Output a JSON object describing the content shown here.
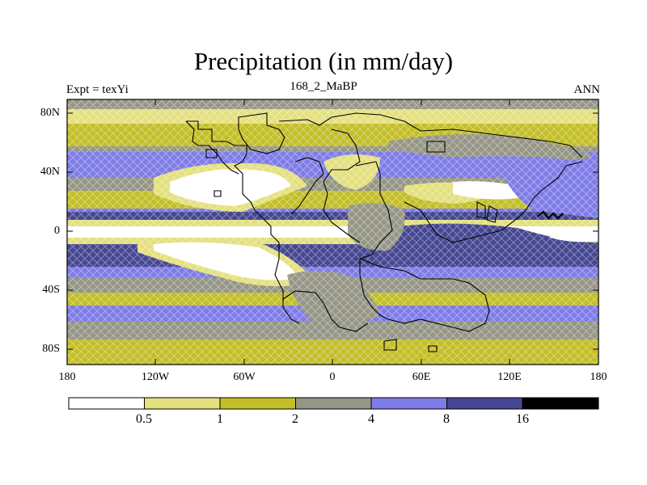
{
  "title": "Precipitation (in mm/day)",
  "left_label": "Expt = texYi",
  "center_label": "168_2_MaBP",
  "right_label": "ANN",
  "y_ticks": [
    "80N",
    "40N",
    "0",
    "40S",
    "80S"
  ],
  "x_ticks": [
    "180",
    "120W",
    "60W",
    "0",
    "60E",
    "120E",
    "180"
  ],
  "colorbar": {
    "labels": [
      "0.5",
      "1",
      "2",
      "4",
      "8",
      "16"
    ],
    "colors": [
      "#ffffff",
      "#e3e07e",
      "#c2be28",
      "#969687",
      "#7e7ce6",
      "#464791",
      "#000000"
    ]
  },
  "chart_data": {
    "type": "heatmap",
    "title": "Precipitation (in mm/day)",
    "xlim": [
      -180,
      180
    ],
    "ylim": [
      -90,
      90
    ],
    "levels": [
      0.5,
      1,
      2,
      4,
      8,
      16
    ]
  }
}
